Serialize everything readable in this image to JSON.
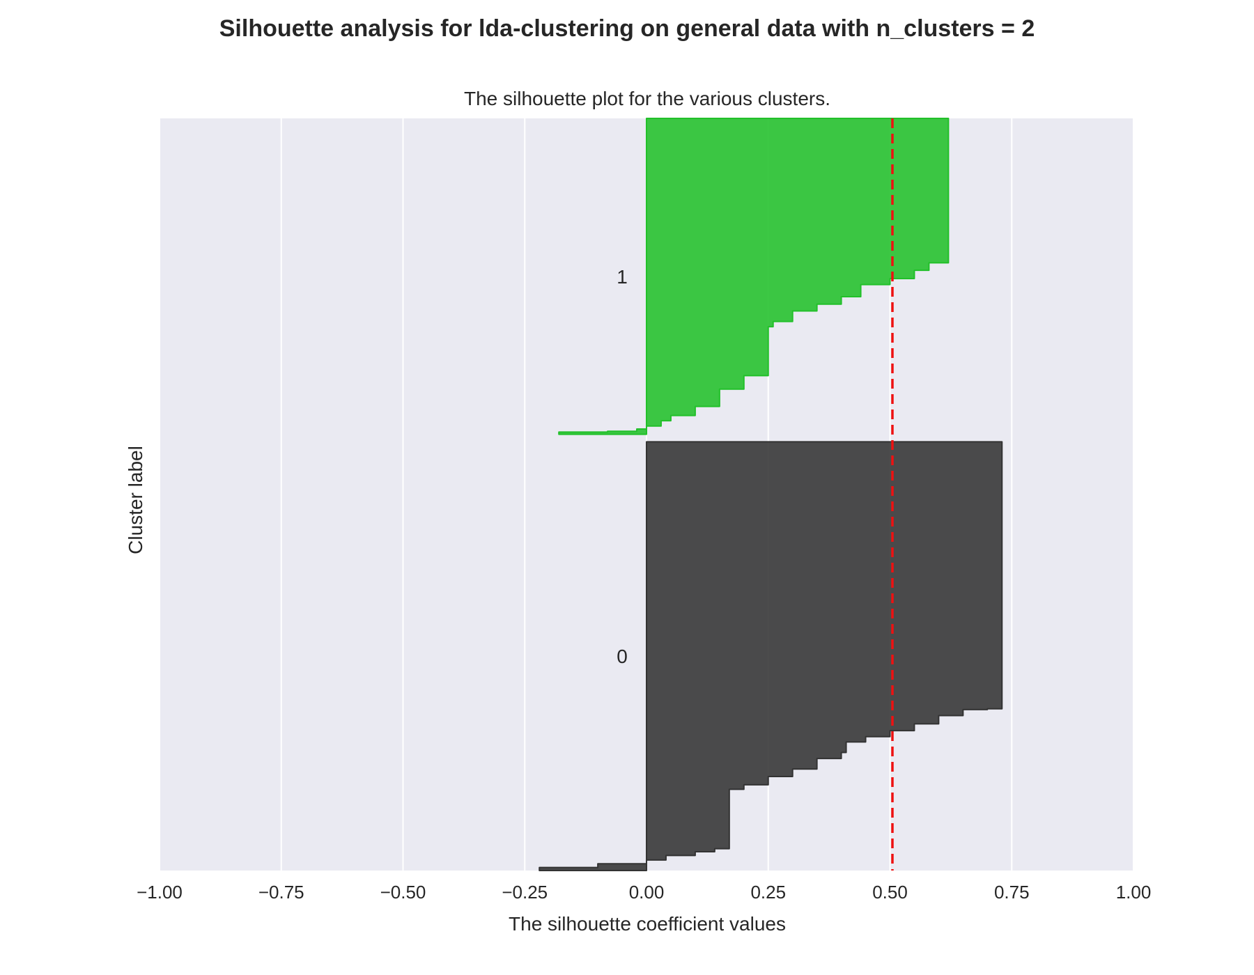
{
  "figure": {
    "suptitle": "Silhouette analysis for lda-clustering on general data with n_clusters = 2"
  },
  "colors": {
    "background": "#eaeaf2",
    "grid": "#ffffff",
    "cluster_0": "#333333",
    "cluster_1": "#22c02a",
    "average_line": "#ee1111"
  },
  "chart_data": {
    "type": "area",
    "title": "The silhouette plot for the various clusters.",
    "xlabel": "The silhouette coefficient values",
    "ylabel": "Cluster label",
    "xlim": [
      -1.0,
      1.0
    ],
    "ylim": [
      0,
      1000
    ],
    "xticks": [
      -1.0,
      -0.75,
      -0.5,
      -0.25,
      0.0,
      0.25,
      0.5,
      0.75,
      1.0
    ],
    "xtick_labels": [
      "−1.00",
      "−0.75",
      "−0.50",
      "−0.25",
      "0.00",
      "0.25",
      "0.50",
      "0.75",
      "1.00"
    ],
    "yticks": [],
    "grid": true,
    "average_silhouette_score": 0.505,
    "series": [
      {
        "name": "0",
        "y_start": 0,
        "y_end": 570,
        "label_y": 285,
        "profile": [
          [
            0,
            -0.22
          ],
          [
            4,
            -0.1
          ],
          [
            9,
            0.0
          ],
          [
            14,
            0.04
          ],
          [
            20,
            0.1
          ],
          [
            25,
            0.14
          ],
          [
            29,
            0.17
          ],
          [
            102,
            0.17
          ],
          [
            108,
            0.2
          ],
          [
            114,
            0.25
          ],
          [
            125,
            0.3
          ],
          [
            135,
            0.35
          ],
          [
            149,
            0.4
          ],
          [
            157,
            0.41
          ],
          [
            171,
            0.45
          ],
          [
            178,
            0.5
          ],
          [
            186,
            0.55
          ],
          [
            195,
            0.6
          ],
          [
            206,
            0.65
          ],
          [
            214,
            0.7
          ],
          [
            215,
            0.73
          ],
          [
            570,
            0.73
          ]
        ]
      },
      {
        "name": "1",
        "y_start": 580,
        "y_end": 1000,
        "label_y": 790,
        "profile": [
          [
            580,
            -0.18
          ],
          [
            583,
            -0.08
          ],
          [
            584,
            -0.02
          ],
          [
            587,
            0.0
          ],
          [
            591,
            0.03
          ],
          [
            598,
            0.05
          ],
          [
            605,
            0.1
          ],
          [
            617,
            0.15
          ],
          [
            640,
            0.2
          ],
          [
            658,
            0.25
          ],
          [
            723,
            0.26
          ],
          [
            730,
            0.3
          ],
          [
            744,
            0.35
          ],
          [
            753,
            0.4
          ],
          [
            763,
            0.44
          ],
          [
            779,
            0.5
          ],
          [
            787,
            0.55
          ],
          [
            798,
            0.58
          ],
          [
            808,
            0.62
          ],
          [
            1000,
            0.62
          ]
        ]
      }
    ]
  }
}
